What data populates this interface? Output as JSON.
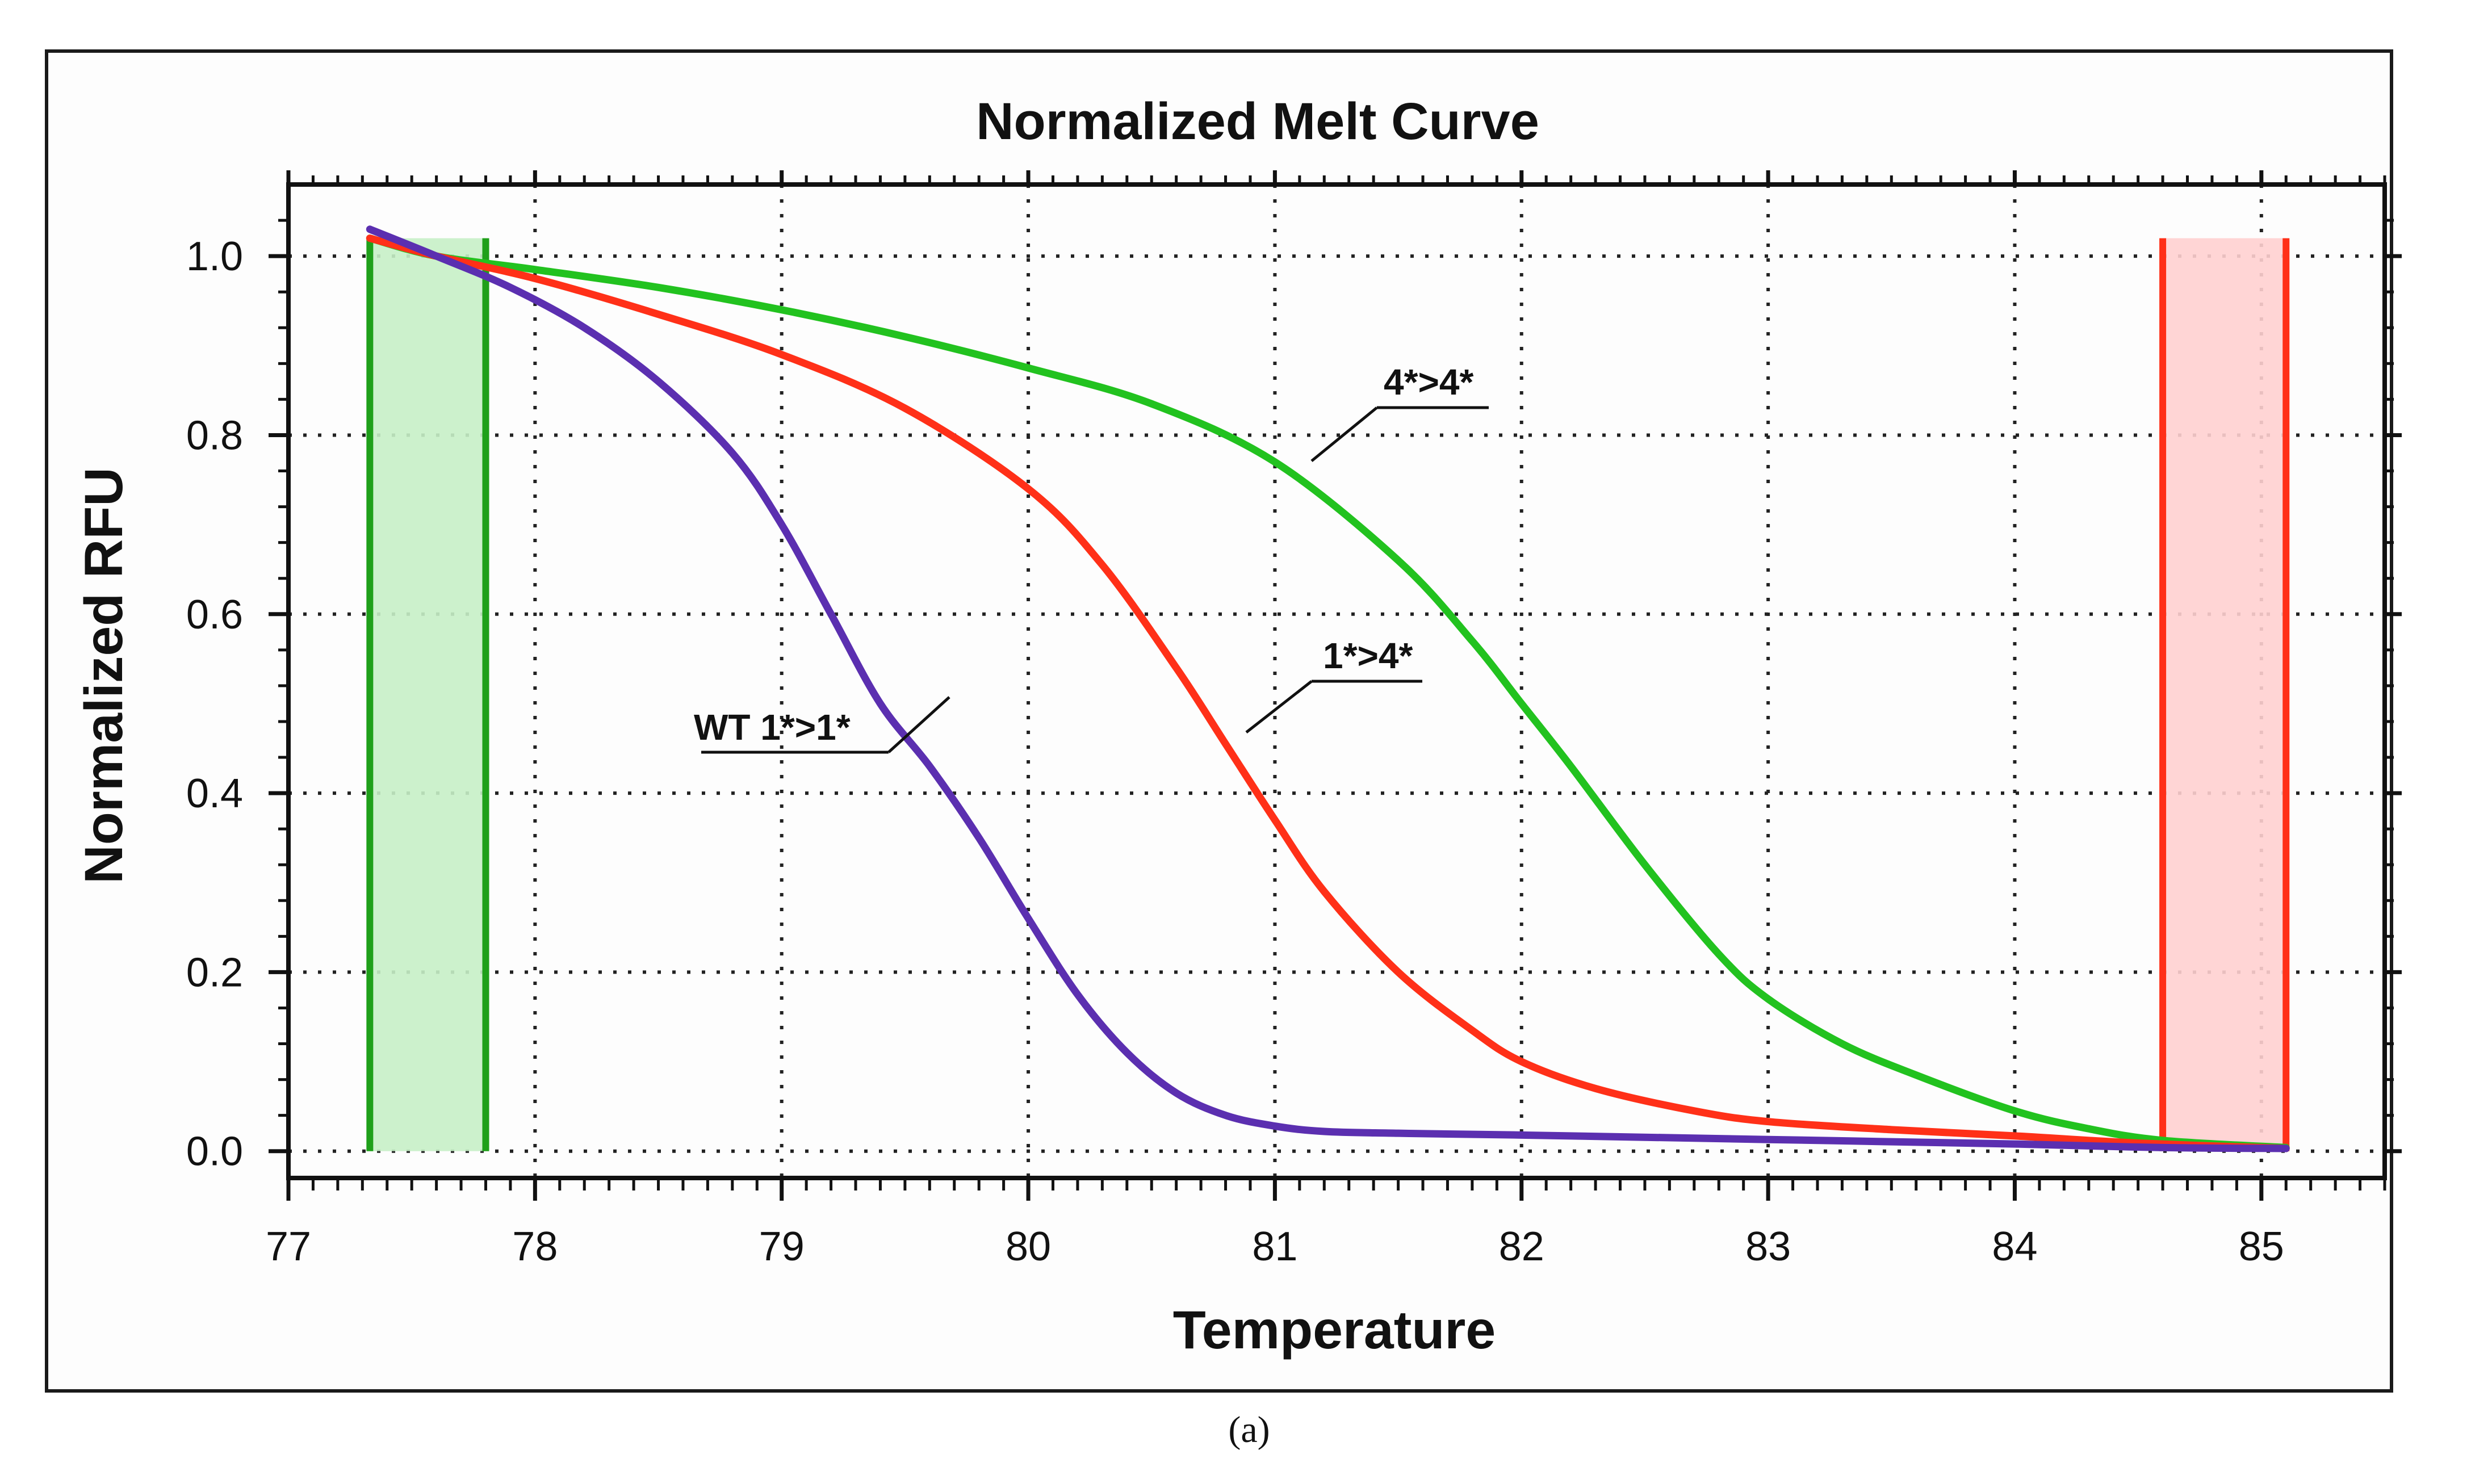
{
  "chart_data": {
    "type": "line",
    "title": "Normalized Melt Curve",
    "xlabel": "Temperature",
    "ylabel": "Normalized RFU",
    "xlim": [
      77,
      85.5
    ],
    "ylim": [
      -0.03,
      1.08
    ],
    "x_ticks": [
      "77",
      "78",
      "79",
      "80",
      "81",
      "82",
      "83",
      "84",
      "85"
    ],
    "y_ticks": [
      "0.0",
      "0.2",
      "0.4",
      "0.6",
      "0.8",
      "1.0"
    ],
    "grid": true,
    "series": [
      {
        "name": "WT 1*>1*",
        "color": "#5b2fb0",
        "x": [
          77.33,
          77.6,
          77.9,
          78.2,
          78.5,
          78.8,
          79.0,
          79.2,
          79.4,
          79.6,
          79.8,
          80.0,
          80.2,
          80.4,
          80.6,
          80.8,
          81.0,
          81.2,
          81.5,
          82.0,
          83.0,
          84.0,
          84.6,
          85.1
        ],
        "y": [
          1.03,
          1.0,
          0.965,
          0.92,
          0.86,
          0.78,
          0.7,
          0.6,
          0.5,
          0.43,
          0.35,
          0.26,
          0.175,
          0.11,
          0.065,
          0.04,
          0.028,
          0.022,
          0.02,
          0.018,
          0.013,
          0.008,
          0.004,
          0.003
        ]
      },
      {
        "name": "1*>4*",
        "color": "#ff3018",
        "x": [
          77.33,
          77.6,
          78.0,
          78.5,
          79.0,
          79.5,
          80.0,
          80.3,
          80.6,
          80.8,
          81.0,
          81.2,
          81.5,
          81.8,
          82.0,
          82.3,
          82.7,
          83.0,
          83.5,
          84.0,
          84.5,
          85.1
        ],
        "y": [
          1.02,
          1.0,
          0.975,
          0.935,
          0.89,
          0.83,
          0.74,
          0.655,
          0.54,
          0.455,
          0.37,
          0.29,
          0.2,
          0.135,
          0.1,
          0.07,
          0.045,
          0.033,
          0.024,
          0.017,
          0.009,
          0.003
        ]
      },
      {
        "name": "4*>4*",
        "color": "#22c21f",
        "x": [
          77.33,
          77.6,
          78.0,
          78.5,
          79.0,
          79.5,
          80.0,
          80.5,
          81.0,
          81.5,
          81.8,
          82.0,
          82.2,
          82.5,
          82.8,
          83.0,
          83.3,
          83.6,
          84.0,
          84.3,
          84.6,
          85.1
        ],
        "y": [
          1.02,
          1.0,
          0.985,
          0.965,
          0.94,
          0.91,
          0.875,
          0.835,
          0.77,
          0.66,
          0.57,
          0.5,
          0.43,
          0.32,
          0.22,
          0.17,
          0.12,
          0.085,
          0.045,
          0.025,
          0.012,
          0.004
        ]
      }
    ],
    "regions": [
      {
        "x": [
          77.33,
          77.8
        ],
        "y": [
          0.0,
          1.02
        ],
        "color": "#1fa01a",
        "fill": "#c6f0c6"
      },
      {
        "x": [
          84.6,
          85.1
        ],
        "y": [
          0.0,
          1.02
        ],
        "color": "#ff3018",
        "fill": "#ffd0d0"
      }
    ],
    "annotations": [
      {
        "text": "4*>4*",
        "series": "4*>4*"
      },
      {
        "text": "1*>4*",
        "series": "1*>4*"
      },
      {
        "text": "WT 1*>1*",
        "series": "WT 1*>1*"
      }
    ]
  },
  "caption": "(a)"
}
